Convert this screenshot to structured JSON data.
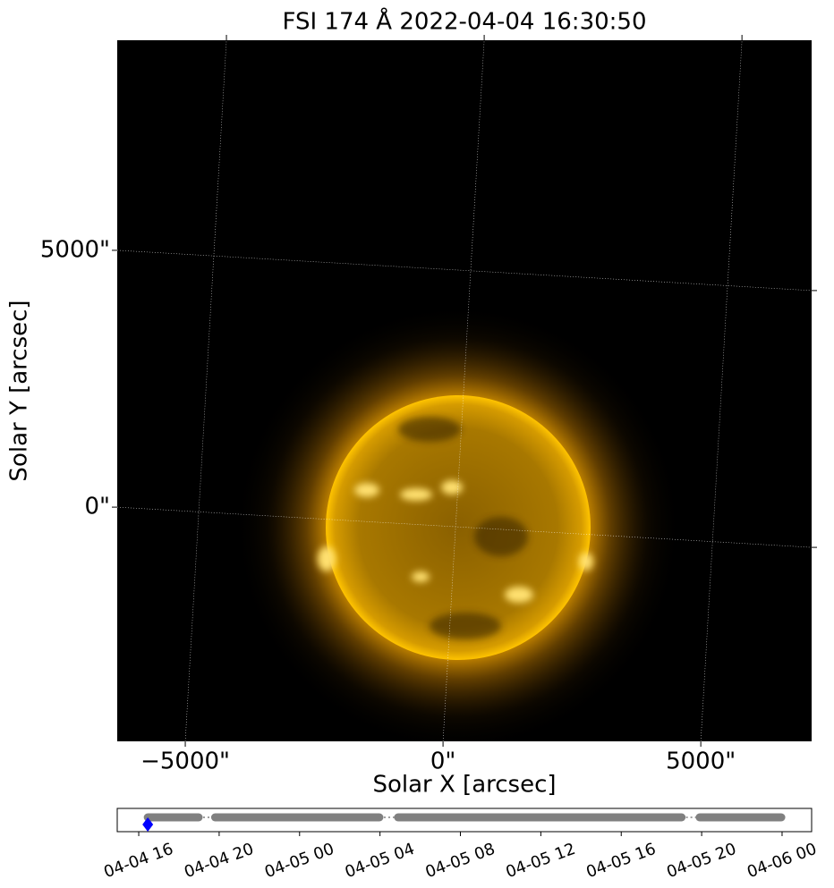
{
  "chart_data": [
    {
      "type": "image",
      "title": "FSI 174 Å 2022-04-04 16:30:50",
      "xlabel": "Solar X [arcsec]",
      "ylabel": "Solar Y [arcsec]",
      "xlim": [
        -6320,
        7150
      ],
      "ylim": [
        -4560,
        9090
      ],
      "xticks": [
        {
          "value": -5000,
          "label": "−5000\""
        },
        {
          "value": 0,
          "label": "0\""
        },
        {
          "value": 5000,
          "label": "5000\""
        }
      ],
      "yticks": [
        {
          "value": 0,
          "label": "0\""
        },
        {
          "value": 5000,
          "label": "5000\""
        }
      ],
      "grid": true
    },
    {
      "type": "timeline",
      "xlim": [
        14.93,
        49.47
      ],
      "xticks": [
        {
          "value": 16,
          "label": "04-04 16"
        },
        {
          "value": 20,
          "label": "04-04 20"
        },
        {
          "value": 24,
          "label": "04-05 00"
        },
        {
          "value": 28,
          "label": "04-05 04"
        },
        {
          "value": 32,
          "label": "04-05 08"
        },
        {
          "value": 36,
          "label": "04-05 12"
        },
        {
          "value": 40,
          "label": "04-05 16"
        },
        {
          "value": 44,
          "label": "04-05 20"
        },
        {
          "value": 48,
          "label": "04-06 00"
        }
      ],
      "segments": [
        [
          16.45,
          18.98
        ],
        [
          19.8,
          27.97
        ],
        [
          28.9,
          43.0
        ],
        [
          43.9,
          47.96
        ]
      ],
      "current": 16.45,
      "color": "#808080",
      "marker_color": "#0000ff"
    }
  ]
}
